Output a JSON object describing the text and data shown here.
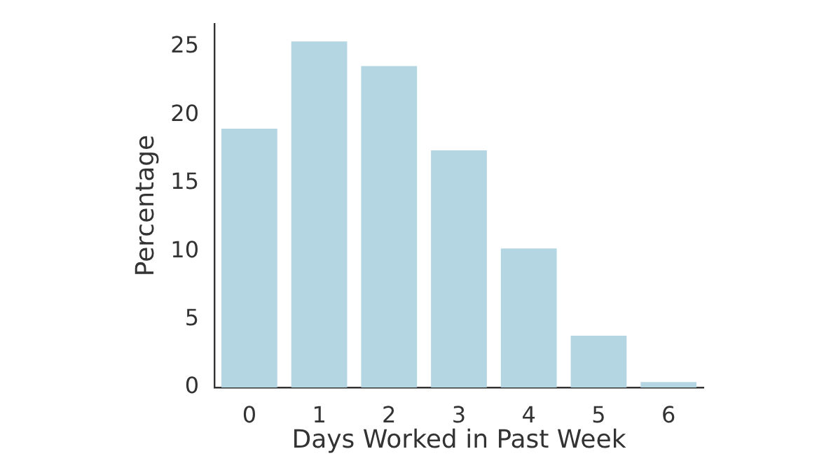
{
  "chart_data": {
    "type": "bar",
    "xlabel": "Days Worked in Past Week",
    "ylabel": "Percentage",
    "categories": [
      "0",
      "1",
      "2",
      "3",
      "4",
      "5",
      "6"
    ],
    "values": [
      19.0,
      25.4,
      23.6,
      17.4,
      10.2,
      3.8,
      0.4
    ],
    "color": "#b4d6e2",
    "ylim": [
      0,
      26.7
    ],
    "yticks": [
      0,
      5,
      10,
      15,
      20,
      25
    ],
    "grid": false,
    "legend": false
  }
}
